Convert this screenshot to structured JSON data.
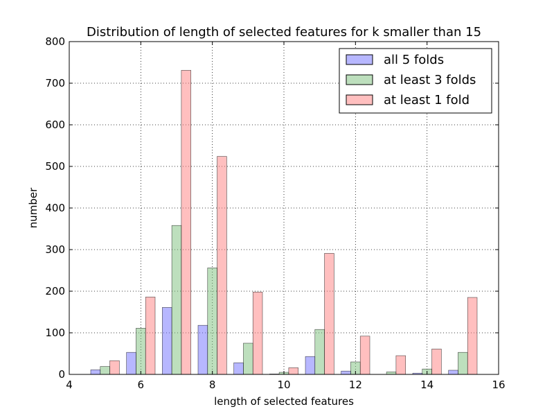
{
  "chart_data": {
    "type": "bar",
    "title": "Distribution of length of selected features for k smaller than 15",
    "xlabel": "length of selected features",
    "ylabel": "number",
    "xlim": [
      4,
      16
    ],
    "ylim": [
      0,
      800
    ],
    "xticks": [
      "4",
      "6",
      "8",
      "10",
      "12",
      "14",
      "16"
    ],
    "yticks": [
      "0",
      "100",
      "200",
      "300",
      "400",
      "500",
      "600",
      "700",
      "800"
    ],
    "grid": true,
    "legend_position": "top-right",
    "x": [
      5,
      6,
      7,
      8,
      9,
      10,
      11,
      12,
      13,
      14,
      15
    ],
    "series": [
      {
        "name": "all 5 folds",
        "color": "#7070ff",
        "values": [
          11,
          53,
          161,
          118,
          28,
          1,
          43,
          8,
          0,
          3,
          10
        ]
      },
      {
        "name": "at least 3 folds",
        "color": "#7cc07c",
        "values": [
          19,
          111,
          358,
          256,
          75,
          5,
          108,
          30,
          6,
          13,
          53
        ]
      },
      {
        "name": "at least 1 fold",
        "color": "#ff7f7f",
        "values": [
          33,
          186,
          731,
          524,
          198,
          16,
          291,
          92,
          45,
          61,
          185
        ]
      }
    ]
  }
}
